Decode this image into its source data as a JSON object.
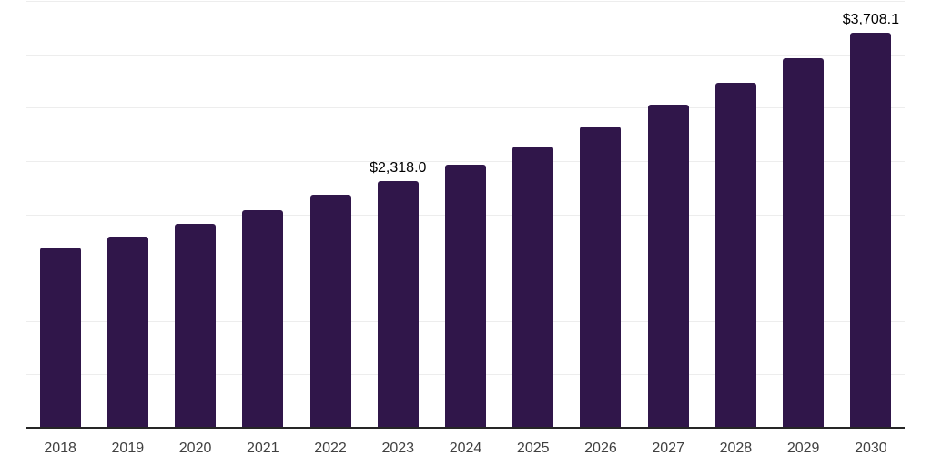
{
  "chart_data": {
    "type": "bar",
    "title": "",
    "xlabel": "",
    "ylabel": "",
    "categories": [
      "2018",
      "2019",
      "2020",
      "2021",
      "2022",
      "2023",
      "2024",
      "2025",
      "2026",
      "2027",
      "2028",
      "2029",
      "2030"
    ],
    "values": [
      1695,
      1796,
      1915,
      2043,
      2185,
      2318.0,
      2473,
      2642,
      2827,
      3030,
      3237,
      3467,
      3708.1
    ],
    "data_labels": [
      {
        "category": "2023",
        "text": "$2,318.0"
      },
      {
        "category": "2030",
        "text": "$3,708.1"
      }
    ],
    "ylim": [
      0,
      4000
    ],
    "grid_step": 500,
    "grid": true,
    "legend": false,
    "colors": {
      "bar": "#30164a",
      "gridline": "#ededed",
      "axis_line": "#262626",
      "tick_label": "#404040",
      "data_label": "#000000",
      "background": "#ffffff"
    }
  }
}
